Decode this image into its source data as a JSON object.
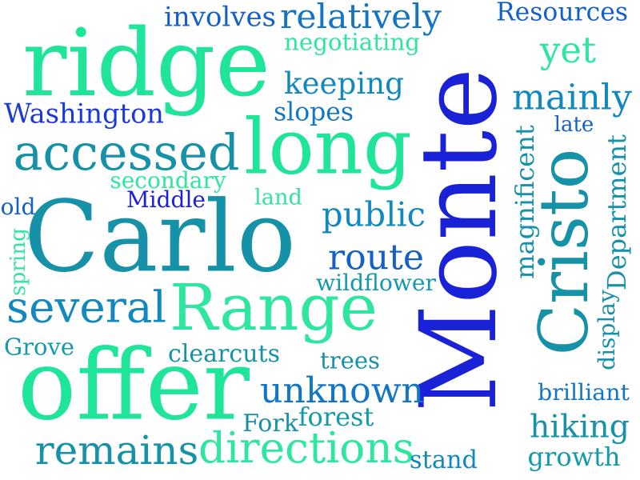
{
  "palette": {
    "green": "#1fe59a",
    "blue": "#0f27d8",
    "teal": "#1299aa",
    "mint": "#2ee6a0"
  },
  "words": [
    {
      "id": "monte",
      "text": "Monte",
      "color": "#1a22d8"
    },
    {
      "id": "carlo",
      "text": "Carlo",
      "color": "#1591a8"
    },
    {
      "id": "ridge",
      "text": "ridge",
      "color": "#1fe59a"
    },
    {
      "id": "offer",
      "text": "offer",
      "color": "#1fe59a"
    },
    {
      "id": "cristo",
      "text": "Cristo",
      "color": "#1591a8"
    },
    {
      "id": "long",
      "text": "long",
      "color": "#1fe59a"
    },
    {
      "id": "range",
      "text": "Range",
      "color": "#2ee6a0"
    },
    {
      "id": "accessed",
      "text": "accessed",
      "color": "#1591a8"
    },
    {
      "id": "several",
      "text": "several",
      "color": "#1288c0"
    },
    {
      "id": "directions",
      "text": "directions",
      "color": "#2ee6a0"
    },
    {
      "id": "remains",
      "text": "remains",
      "color": "#1591a8"
    },
    {
      "id": "unknown",
      "text": "unknown",
      "color": "#1275c5"
    },
    {
      "id": "relatively",
      "text": "relatively",
      "color": "#1275c5"
    },
    {
      "id": "keeping",
      "text": "keeping",
      "color": "#1288c0"
    },
    {
      "id": "public",
      "text": "public",
      "color": "#1288c0"
    },
    {
      "id": "route",
      "text": "route",
      "color": "#1560c8"
    },
    {
      "id": "mainly",
      "text": "mainly",
      "color": "#1288c0"
    },
    {
      "id": "hiking",
      "text": "hiking",
      "color": "#1591a8"
    },
    {
      "id": "yet",
      "text": "yet",
      "color": "#2ee6a0"
    },
    {
      "id": "involves",
      "text": "involves",
      "color": "#1560c8"
    },
    {
      "id": "washington",
      "text": "Washington",
      "color": "#1a3ad8"
    },
    {
      "id": "resources",
      "text": "Resources",
      "color": "#1560c8"
    },
    {
      "id": "department",
      "text": "Department",
      "color": "#1591a8"
    },
    {
      "id": "magnificent",
      "text": "magnificent",
      "color": "#1591a8"
    },
    {
      "id": "display",
      "text": "display",
      "color": "#1591a8"
    },
    {
      "id": "brilliant",
      "text": "brilliant",
      "color": "#1275c5"
    },
    {
      "id": "growth",
      "text": "growth",
      "color": "#1299aa"
    },
    {
      "id": "stand",
      "text": "stand",
      "color": "#1288c0"
    },
    {
      "id": "forest",
      "text": "forest",
      "color": "#1299aa"
    },
    {
      "id": "fork",
      "text": "Fork",
      "color": "#1591a8"
    },
    {
      "id": "trees",
      "text": "trees",
      "color": "#1591a8"
    },
    {
      "id": "clearcuts",
      "text": "clearcuts",
      "color": "#1591a8"
    },
    {
      "id": "grove",
      "text": "Grove",
      "color": "#1299aa"
    },
    {
      "id": "wildflower",
      "text": "wildflower",
      "color": "#1299aa"
    },
    {
      "id": "spring",
      "text": "spring",
      "color": "#2ee6a0"
    },
    {
      "id": "old",
      "text": "old",
      "color": "#1560c8"
    },
    {
      "id": "middle",
      "text": "Middle",
      "color": "#1a22d8"
    },
    {
      "id": "secondary",
      "text": "secondary",
      "color": "#2ee6a0"
    },
    {
      "id": "land",
      "text": "land",
      "color": "#2ee6a0"
    },
    {
      "id": "slopes",
      "text": "slopes",
      "color": "#1275c5"
    },
    {
      "id": "negotiating",
      "text": "negotiating",
      "color": "#2ee6a0"
    },
    {
      "id": "late",
      "text": "late",
      "color": "#1560c8"
    }
  ]
}
